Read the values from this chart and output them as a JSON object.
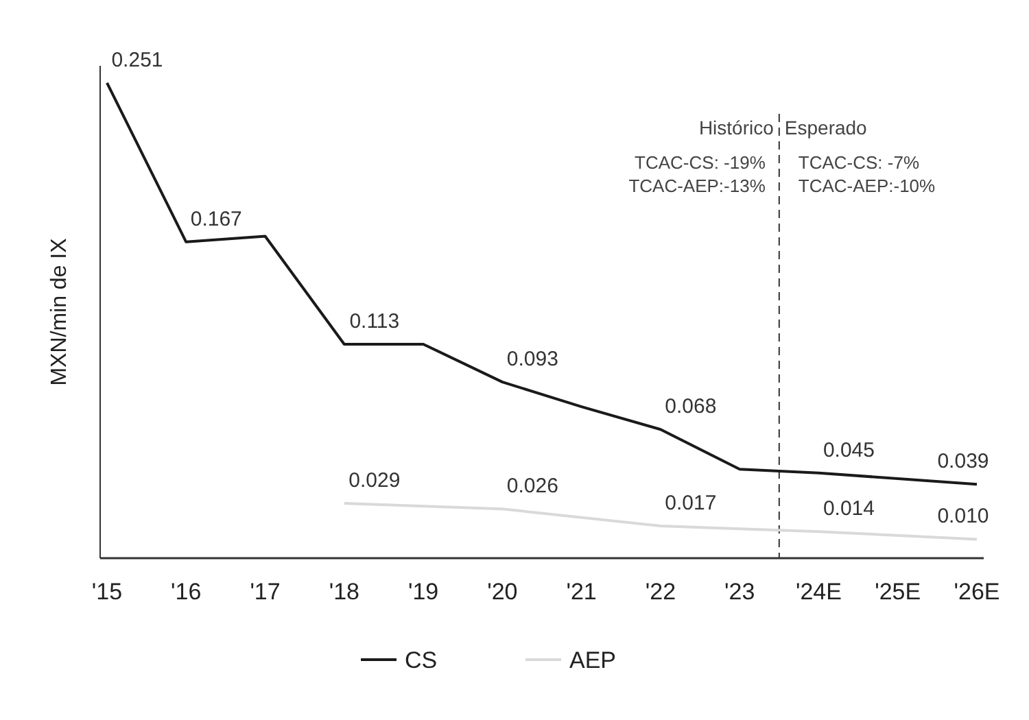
{
  "chart_data": {
    "type": "line",
    "ylabel": "MXN/min de IX",
    "categories": [
      "'15",
      "'16",
      "'17",
      "'18",
      "'19",
      "'20",
      "'21",
      "'22",
      "'23",
      "'24E",
      "'25E",
      "'26E"
    ],
    "ylim": [
      0,
      0.26
    ],
    "series": [
      {
        "name": "CS",
        "color": "#1a1a1a",
        "values": [
          0.251,
          0.167,
          0.17,
          0.113,
          0.113,
          0.093,
          0.08,
          0.068,
          0.047,
          0.045,
          0.042,
          0.039
        ],
        "value_labels": [
          "0.251",
          "0.167",
          null,
          "0.113",
          null,
          "0.093",
          null,
          "0.068",
          null,
          "0.045",
          null,
          "0.039"
        ]
      },
      {
        "name": "AEP",
        "color": "#d9d9d9",
        "values": [
          null,
          null,
          null,
          0.029,
          null,
          0.026,
          null,
          0.017,
          null,
          0.014,
          null,
          0.01
        ],
        "value_labels": [
          null,
          null,
          null,
          "0.029",
          null,
          "0.026",
          null,
          "0.017",
          null,
          "0.014",
          null,
          "0.010"
        ]
      }
    ],
    "annotations": [
      "Histórico",
      "Esperado",
      "TCAC-CS: -19%",
      "TCAC-AEP:-13%",
      "TCAC-CS: -7%",
      "TCAC-AEP:-10%"
    ],
    "legend": "bottom",
    "line_style": "solid",
    "marker": "none"
  }
}
